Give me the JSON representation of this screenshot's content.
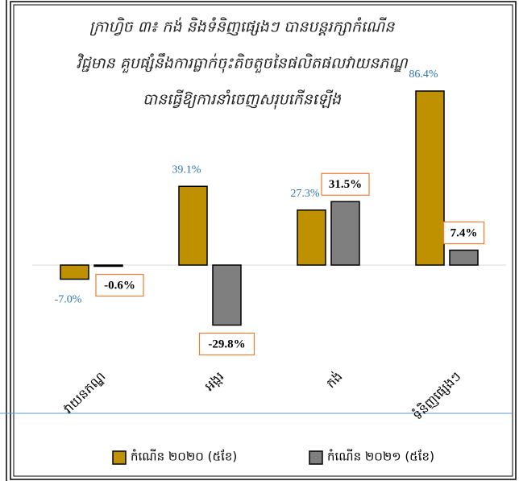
{
  "chart_data": {
    "type": "bar",
    "title": [
      "ក្រាហ្វិច ៣៖ កង់ និងទំនិញផ្សេងៗ បានបន្តរក្សាកំណើន",
      "វិជ្ជមាន គួបផ្សំនឹងការធ្លាក់ចុះតិចតួចនៃផលិតផលវាយនភណ្ឌ",
      "បានធ្វើឱ្យការនាំចេញសរុបកើនឡើង"
    ],
    "categories": [
      "វាយនភណ្ឌ",
      "អង្ករ",
      "កង់",
      "ទំនិញផ្សេងៗ"
    ],
    "series": [
      {
        "name": "កំណើន ២០២០ (៥ខែ)",
        "color": "#bf9000",
        "values": [
          -7.0,
          39.1,
          27.3,
          86.4
        ],
        "value_labels": [
          "-7.0%",
          "39.1%",
          "27.3%",
          "86.4%"
        ]
      },
      {
        "name": "កំណើន ២០២១ (៥ខែ)",
        "color": "#7f7f7f",
        "values": [
          -0.6,
          -29.8,
          31.5,
          7.4
        ],
        "value_labels": [
          "-0.6%",
          "-29.8%",
          "31.5%",
          "7.4%"
        ]
      }
    ],
    "ylim": [
      -40,
      100
    ],
    "legend": "bottom"
  }
}
